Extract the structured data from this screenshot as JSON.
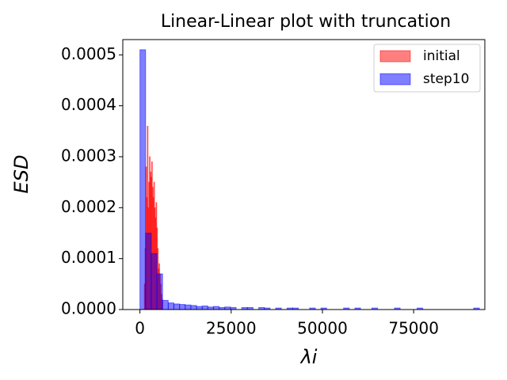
{
  "chart_data": {
    "type": "histogram",
    "title": "Linear-Linear plot with truncation",
    "xlabel": "λi",
    "ylabel": "ESD",
    "xlim": [
      -4700,
      94500
    ],
    "ylim": [
      0,
      0.00053
    ],
    "xticks": [
      0,
      25000,
      50000,
      75000
    ],
    "yticks": [
      {
        "value": 0,
        "label": "0.0000"
      },
      {
        "value": 0.0001,
        "label": "0.0001"
      },
      {
        "value": 0.0002,
        "label": "0.0002"
      },
      {
        "value": 0.0003,
        "label": "0.0003"
      },
      {
        "value": 0.0004,
        "label": "0.0004"
      },
      {
        "value": 0.0005,
        "label": "0.0005"
      }
    ],
    "legend": "upper right",
    "series": [
      {
        "name": "initial",
        "color": "#ff0000",
        "bins": [
          1200,
          1400,
          1600,
          1800,
          2000,
          2200,
          2400,
          2600,
          2800,
          3000,
          3200,
          3400,
          3600,
          3800,
          4000,
          4200,
          4400,
          4600,
          4800,
          5000,
          5200,
          5400,
          5600,
          5800,
          6000,
          6200
        ],
        "values": [
          5e-05,
          0.00012,
          0.00028,
          0.00022,
          0.00036,
          0.0002,
          0.00025,
          0.0003,
          0.00027,
          0.00026,
          0.00029,
          0.00024,
          0.00022,
          0.00025,
          0.0002,
          0.00018,
          0.00021,
          0.00016,
          0.00012,
          8e-05,
          9e-05,
          7e-05,
          5e-05,
          3e-05,
          2e-05
        ]
      },
      {
        "name": "step10",
        "color": "#0000ff",
        "bins": [
          0,
          1550,
          3100,
          4650,
          6200,
          7750,
          9300,
          10850,
          12400,
          13950,
          15500,
          17050,
          18600,
          20150,
          21700,
          23250,
          24800,
          26350,
          27900,
          29450,
          31000,
          32550,
          34100,
          35650,
          37200,
          38750,
          40300,
          41850,
          43400,
          44950,
          46500,
          48050,
          49600,
          51150,
          52700,
          54250,
          55800,
          57350,
          58900,
          60450,
          62000,
          63550,
          65100,
          66650,
          68200,
          69750,
          71300,
          72850,
          74400,
          75950,
          77500,
          79050,
          80600,
          82150,
          83700,
          85250,
          86800,
          88350,
          89900,
          91450,
          93000
        ],
        "values": [
          0.00051,
          0.00015,
          0.00011,
          7e-05,
          1.8e-05,
          1.3e-05,
          1.1e-05,
          1e-05,
          9e-06,
          8e-06,
          6e-06,
          7e-06,
          5e-06,
          6e-06,
          4e-06,
          5e-06,
          4e-06,
          0,
          4e-06,
          4e-06,
          0,
          4e-06,
          3e-06,
          0,
          3e-06,
          0,
          3e-06,
          3e-06,
          0,
          0,
          3e-06,
          0,
          3e-06,
          0,
          0,
          0,
          3e-06,
          0,
          3e-06,
          0,
          0,
          3e-06,
          0,
          0,
          0,
          3e-06,
          0,
          0,
          0,
          3e-06,
          0,
          0,
          0,
          0,
          0,
          0,
          0,
          0,
          0,
          3e-06
        ]
      }
    ]
  }
}
